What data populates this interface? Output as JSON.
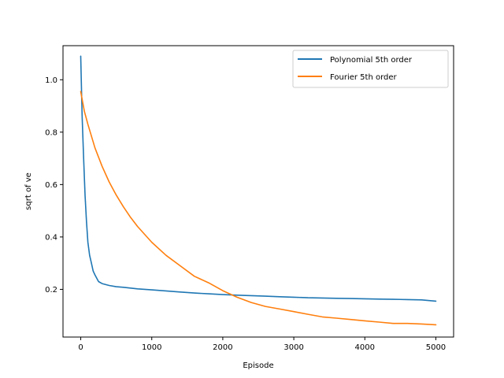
{
  "chart_data": {
    "type": "line",
    "title": "",
    "xlabel": "Episode",
    "ylabel": "sqrt of ve",
    "xlim": [
      -250,
      5250
    ],
    "ylim": [
      0.018,
      1.13
    ],
    "x_ticks": [
      0,
      1000,
      2000,
      3000,
      4000,
      5000
    ],
    "x_tick_labels": [
      "0",
      "1000",
      "2000",
      "3000",
      "4000",
      "5000"
    ],
    "y_ticks": [
      0.2,
      0.4,
      0.6,
      0.8,
      1.0
    ],
    "y_tick_labels": [
      "0.2",
      "0.4",
      "0.6",
      "0.8",
      "1.0"
    ],
    "grid": false,
    "legend_position": "top-right",
    "series": [
      {
        "name": "Polynomial 5th order",
        "color": "#1f77b4",
        "x": [
          0,
          20,
          40,
          60,
          80,
          100,
          125,
          150,
          175,
          200,
          250,
          300,
          400,
          500,
          600,
          700,
          800,
          900,
          1000,
          1200,
          1400,
          1600,
          1800,
          2000,
          2200,
          2400,
          2600,
          2800,
          3000,
          3200,
          3400,
          3600,
          3800,
          4000,
          4200,
          4400,
          4600,
          4800,
          5000
        ],
        "y": [
          1.09,
          0.86,
          0.7,
          0.56,
          0.46,
          0.38,
          0.33,
          0.3,
          0.27,
          0.255,
          0.23,
          0.222,
          0.215,
          0.21,
          0.208,
          0.205,
          0.202,
          0.2,
          0.198,
          0.194,
          0.19,
          0.186,
          0.183,
          0.18,
          0.178,
          0.176,
          0.174,
          0.172,
          0.17,
          0.168,
          0.167,
          0.166,
          0.165,
          0.164,
          0.163,
          0.162,
          0.161,
          0.16,
          0.155
        ]
      },
      {
        "name": "Fourier 5th order",
        "color": "#ff7f0e",
        "x": [
          0,
          50,
          100,
          200,
          300,
          400,
          500,
          600,
          700,
          800,
          900,
          1000,
          1200,
          1400,
          1600,
          1800,
          2000,
          2200,
          2400,
          2600,
          2800,
          3000,
          3200,
          3400,
          3600,
          3800,
          4000,
          4200,
          4400,
          4600,
          4800,
          5000
        ],
        "y": [
          0.955,
          0.88,
          0.83,
          0.74,
          0.67,
          0.61,
          0.56,
          0.515,
          0.475,
          0.44,
          0.41,
          0.38,
          0.33,
          0.29,
          0.25,
          0.225,
          0.195,
          0.17,
          0.15,
          0.135,
          0.125,
          0.115,
          0.105,
          0.095,
          0.09,
          0.085,
          0.08,
          0.075,
          0.07,
          0.07,
          0.068,
          0.065
        ]
      }
    ]
  }
}
